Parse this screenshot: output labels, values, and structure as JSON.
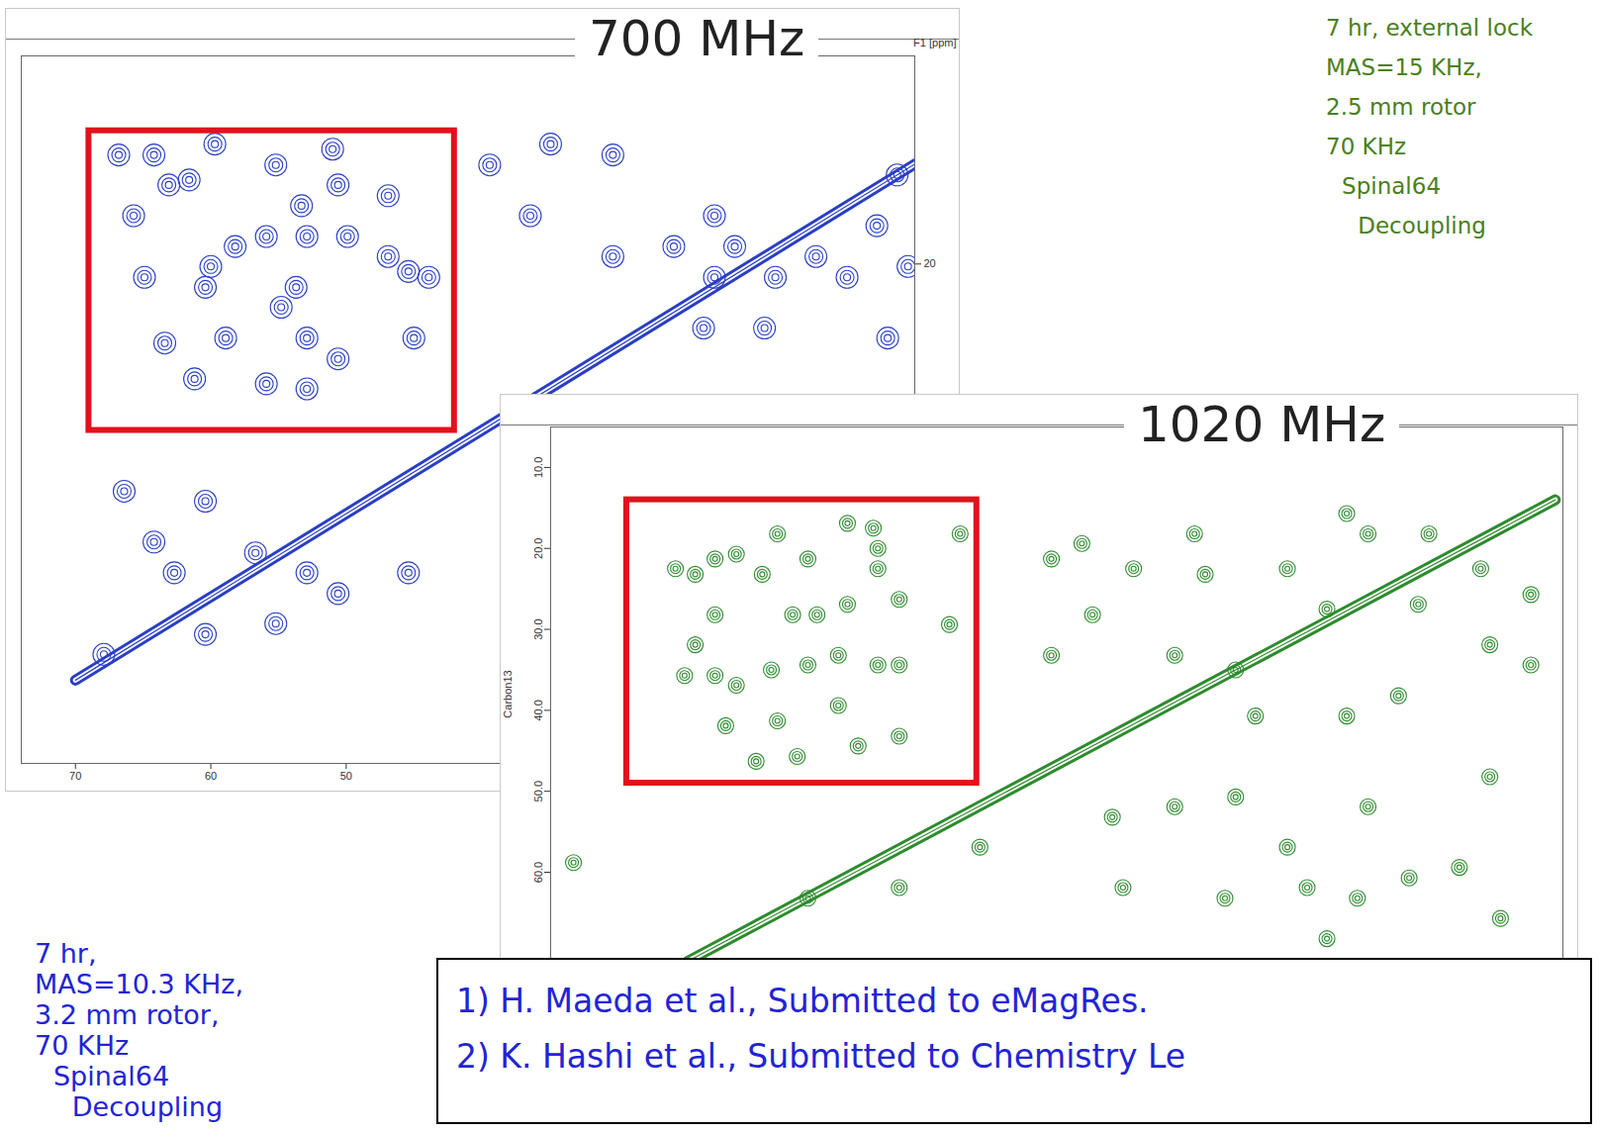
{
  "chart_data": [
    {
      "type": "scatter",
      "title": "700 MHz",
      "ylabel": "F1 [ppm]",
      "color": "#2a3fc4",
      "xlim": [
        74,
        8
      ],
      "ylim": [
        -5,
        80
      ],
      "xticks": [
        70,
        60,
        50
      ],
      "yticks": [
        20
      ],
      "x": [
        66.8,
        64.2,
        63.1,
        61.6,
        59.7,
        55.2,
        51.0,
        50.6,
        53.3,
        52.9,
        49.9,
        55.9,
        58.2,
        60.4,
        64.9,
        46.9,
        45.4,
        46.9,
        65.7,
        60.0,
        53.7,
        54.8,
        52.9,
        50.6,
        58.9,
        63.4,
        61.2,
        55.9,
        52.9,
        45.0,
        43.9,
        39.4,
        34.9,
        30.3,
        36.4,
        30.3,
        25.8,
        22.8,
        21.3,
        22.8,
        18.3,
        15.3,
        13.0,
        10.8,
        9.3,
        8.5,
        10.0,
        19.1,
        23.6,
        66.4,
        60.4,
        64.2,
        56.7,
        52.9,
        60.4,
        62.7,
        50.6,
        55.2,
        67.9,
        45.4
      ],
      "y": [
        6.9,
        6.9,
        10.5,
        9.9,
        5.6,
        8.1,
        6.2,
        10.5,
        13.0,
        16.7,
        16.7,
        16.7,
        17.9,
        22.8,
        21.6,
        11.8,
        20.9,
        19.1,
        14.2,
        20.3,
        22.8,
        25.2,
        28.9,
        31.4,
        28.9,
        29.5,
        33.8,
        34.4,
        35.0,
        28.9,
        21.6,
        8.1,
        5.6,
        6.9,
        14.2,
        19.1,
        17.9,
        14.2,
        17.9,
        21.6,
        21.6,
        19.1,
        21.6,
        15.4,
        9.3,
        20.3,
        28.9,
        27.7,
        27.7,
        47.3,
        48.5,
        53.4,
        54.7,
        57.1,
        64.5,
        57.1,
        59.6,
        63.2,
        66.9,
        57.1
      ],
      "diagonal": {
        "x": [
          70,
          8
        ],
        "y": [
          70,
          8
        ]
      },
      "highlight": {
        "x": [
          69,
          42
        ],
        "y": [
          4,
          40
        ],
        "color": "#e3101c"
      },
      "conditions": {
        "lines": [
          "7 hr,",
          "MAS=10.3 KHz,",
          "3.2 mm rotor,",
          "70 KHz",
          "Spinal64",
          "Decoupling"
        ],
        "color": "#2323d6"
      }
    },
    {
      "type": "scatter",
      "title": "1020 MHz",
      "ylabel": "Carbon13",
      "color": "#2e8b2e",
      "tick_labels": "y",
      "xlim": [
        80,
        13.5
      ],
      "ylim": [
        5,
        71
      ],
      "xticks": [],
      "yticks": [
        {
          "value": 10,
          "label": "10.0"
        },
        {
          "value": 20,
          "label": "20.0"
        },
        {
          "value": 30,
          "label": "30.0"
        },
        {
          "value": 40,
          "label": "40.0"
        },
        {
          "value": 50,
          "label": "50.0"
        },
        {
          "value": 60,
          "label": "60.0"
        }
      ],
      "x": [
        71.8,
        70.5,
        69.2,
        67.8,
        65.1,
        63.1,
        60.5,
        58.8,
        58.5,
        58.5,
        57.1,
        60.5,
        62.5,
        64.1,
        66.1,
        69.2,
        70.5,
        71.2,
        69.2,
        67.8,
        65.5,
        63.1,
        61.1,
        58.5,
        57.1,
        61.1,
        59.8,
        57.1,
        63.8,
        66.5,
        65.1,
        53.8,
        68.5,
        53.1,
        47.1,
        45.1,
        41.7,
        37.7,
        37.0,
        31.6,
        27.7,
        26.3,
        22.3,
        18.9,
        15.6,
        29.0,
        23.0,
        18.3,
        44.4,
        47.1,
        39.0,
        35.0,
        15.6,
        24.3,
        27.7,
        33.7,
        43.1,
        39.0,
        35.0,
        31.6,
        30.3,
        27.0,
        23.6,
        20.3,
        18.3,
        26.3,
        42.4,
        35.7,
        29.0,
        57.1,
        63.1,
        51.8,
        17.6,
        78.5
      ],
      "y": [
        22.5,
        23.2,
        21.3,
        20.7,
        18.2,
        21.3,
        16.9,
        17.5,
        20.0,
        22.5,
        26.3,
        26.9,
        28.2,
        28.2,
        23.2,
        28.2,
        31.9,
        35.7,
        35.7,
        36.9,
        35.0,
        34.4,
        33.2,
        34.4,
        34.4,
        39.4,
        44.4,
        43.2,
        45.7,
        46.3,
        41.3,
        29.4,
        41.9,
        18.2,
        21.3,
        19.4,
        22.5,
        18.2,
        23.2,
        22.5,
        15.7,
        18.2,
        18.2,
        22.5,
        25.7,
        27.5,
        26.9,
        31.9,
        28.2,
        33.2,
        33.2,
        35.0,
        34.4,
        38.2,
        40.7,
        40.7,
        53.2,
        51.9,
        50.7,
        56.9,
        61.9,
        63.2,
        60.7,
        59.4,
        48.2,
        51.9,
        61.9,
        63.2,
        68.2,
        61.9,
        63.2,
        56.9,
        65.7,
        58.8
      ],
      "diagonal": {
        "x": [
          71,
          14
        ],
        "y": [
          71,
          14
        ]
      },
      "highlight": {
        "x": [
          75,
          52
        ],
        "y": [
          14,
          49
        ],
        "color": "#e3101c"
      },
      "conditions": {
        "lines": [
          "7 hr, external lock",
          "MAS=15 KHz,",
          "2.5 mm rotor",
          "70 KHz",
          "Spinal64",
          "Decoupling"
        ],
        "color": "#4b7f1c"
      }
    }
  ],
  "references": {
    "lines": [
      "1) H. Maeda et al., Submitted to eMagRes.",
      "2) K. Hashi et al., Submitted to Chemistry Le"
    ],
    "color": "#2323d6"
  }
}
